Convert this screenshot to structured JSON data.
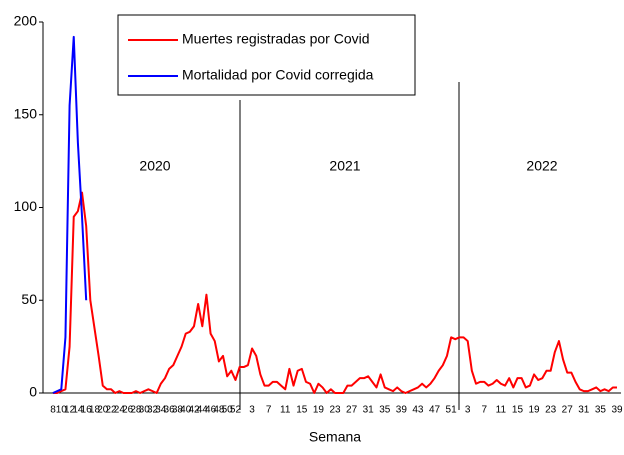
{
  "chart_data": {
    "type": "line",
    "x_label": "Semana",
    "annotations": [
      "2020",
      "2021",
      "2022"
    ],
    "categories": [
      "8",
      null,
      "10",
      null,
      "12",
      null,
      "14",
      null,
      "16",
      null,
      "18",
      null,
      "20",
      null,
      "22",
      null,
      "24",
      null,
      "26",
      null,
      "28",
      null,
      "30",
      null,
      "32",
      null,
      "34",
      null,
      "36",
      null,
      "38",
      null,
      "40",
      null,
      "42",
      null,
      "44",
      null,
      "46",
      null,
      "48",
      null,
      "50",
      null,
      "52",
      null,
      null,
      null,
      "3",
      null,
      null,
      null,
      "7",
      null,
      null,
      null,
      "11",
      null,
      null,
      null,
      "15",
      null,
      null,
      null,
      "19",
      null,
      null,
      null,
      "23",
      null,
      null,
      null,
      "27",
      null,
      null,
      null,
      "31",
      null,
      null,
      null,
      "35",
      null,
      null,
      null,
      "39",
      null,
      null,
      null,
      "43",
      null,
      null,
      null,
      "47",
      null,
      null,
      null,
      "51",
      null,
      null,
      null,
      "3",
      null,
      null,
      null,
      "7",
      null,
      null,
      null,
      "11",
      null,
      null,
      null,
      "15",
      null,
      null,
      null,
      "19",
      null,
      null,
      null,
      "23",
      null,
      null,
      null,
      "27",
      null,
      null,
      null,
      "31",
      null,
      null,
      null,
      "35",
      null,
      null,
      null,
      "39"
    ],
    "series": [
      {
        "name": "Muertes registradas por Covid",
        "color": "#ff0000",
        "values": [
          0,
          0,
          1,
          2,
          25,
          95,
          98,
          108,
          90,
          50,
          35,
          20,
          4,
          2,
          2,
          0,
          1,
          0,
          0,
          0,
          1,
          0,
          1,
          2,
          1,
          0,
          5,
          8,
          13,
          15,
          20,
          25,
          32,
          33,
          36,
          48,
          36,
          53,
          32,
          28,
          17,
          20,
          9,
          12,
          7,
          14,
          14,
          15,
          24,
          20,
          10,
          4,
          4,
          6,
          6,
          4,
          2,
          13,
          4,
          12,
          13,
          6,
          5,
          0,
          5,
          3,
          0,
          2,
          0,
          0,
          0,
          4,
          4,
          6,
          8,
          8,
          9,
          6,
          3,
          10,
          3,
          2,
          1,
          3,
          1,
          0,
          1,
          2,
          3,
          5,
          3,
          5,
          8,
          12,
          15,
          20,
          30,
          29,
          30,
          30,
          28,
          12,
          5,
          6,
          6,
          4,
          5,
          7,
          5,
          4,
          8,
          3,
          8,
          8,
          3,
          4,
          10,
          7,
          8,
          12,
          12,
          22,
          28,
          18,
          11,
          11,
          6,
          2,
          1,
          1,
          2,
          3,
          1,
          2,
          1,
          3,
          3
        ]
      },
      {
        "name": "Mortalidad por Covid corregida",
        "color": "#0000ff",
        "values": [
          0,
          1,
          2,
          30,
          155,
          192,
          135,
          95,
          50,
          null,
          null,
          null,
          null,
          null,
          null,
          null,
          null,
          null,
          null,
          null,
          null,
          null,
          null,
          null,
          null,
          null,
          null,
          null,
          null,
          null,
          null,
          null,
          null,
          null,
          null,
          null,
          null,
          null,
          null,
          null,
          null,
          null,
          null,
          null,
          null,
          null,
          null,
          null,
          null,
          null,
          null,
          null,
          null,
          null,
          null,
          null,
          null,
          null,
          null,
          null,
          null,
          null,
          null,
          null,
          null,
          null,
          null,
          null,
          null,
          null,
          null,
          null,
          null,
          null,
          null,
          null,
          null,
          null,
          null,
          null,
          null,
          null,
          null,
          null,
          null,
          null,
          null,
          null,
          null,
          null,
          null,
          null,
          null,
          null,
          null,
          null,
          null,
          null,
          null,
          null,
          null,
          null,
          null,
          null,
          null,
          null,
          null,
          null,
          null,
          null,
          null,
          null,
          null,
          null,
          null,
          null,
          null,
          null,
          null,
          null,
          null,
          null,
          null,
          null,
          null,
          null,
          null,
          null,
          null,
          null,
          null,
          null,
          null,
          null,
          null,
          null,
          null
        ]
      }
    ],
    "ylim": [
      0,
      200
    ],
    "yticks": [
      0,
      50,
      100,
      150,
      200
    ],
    "grid": false
  }
}
